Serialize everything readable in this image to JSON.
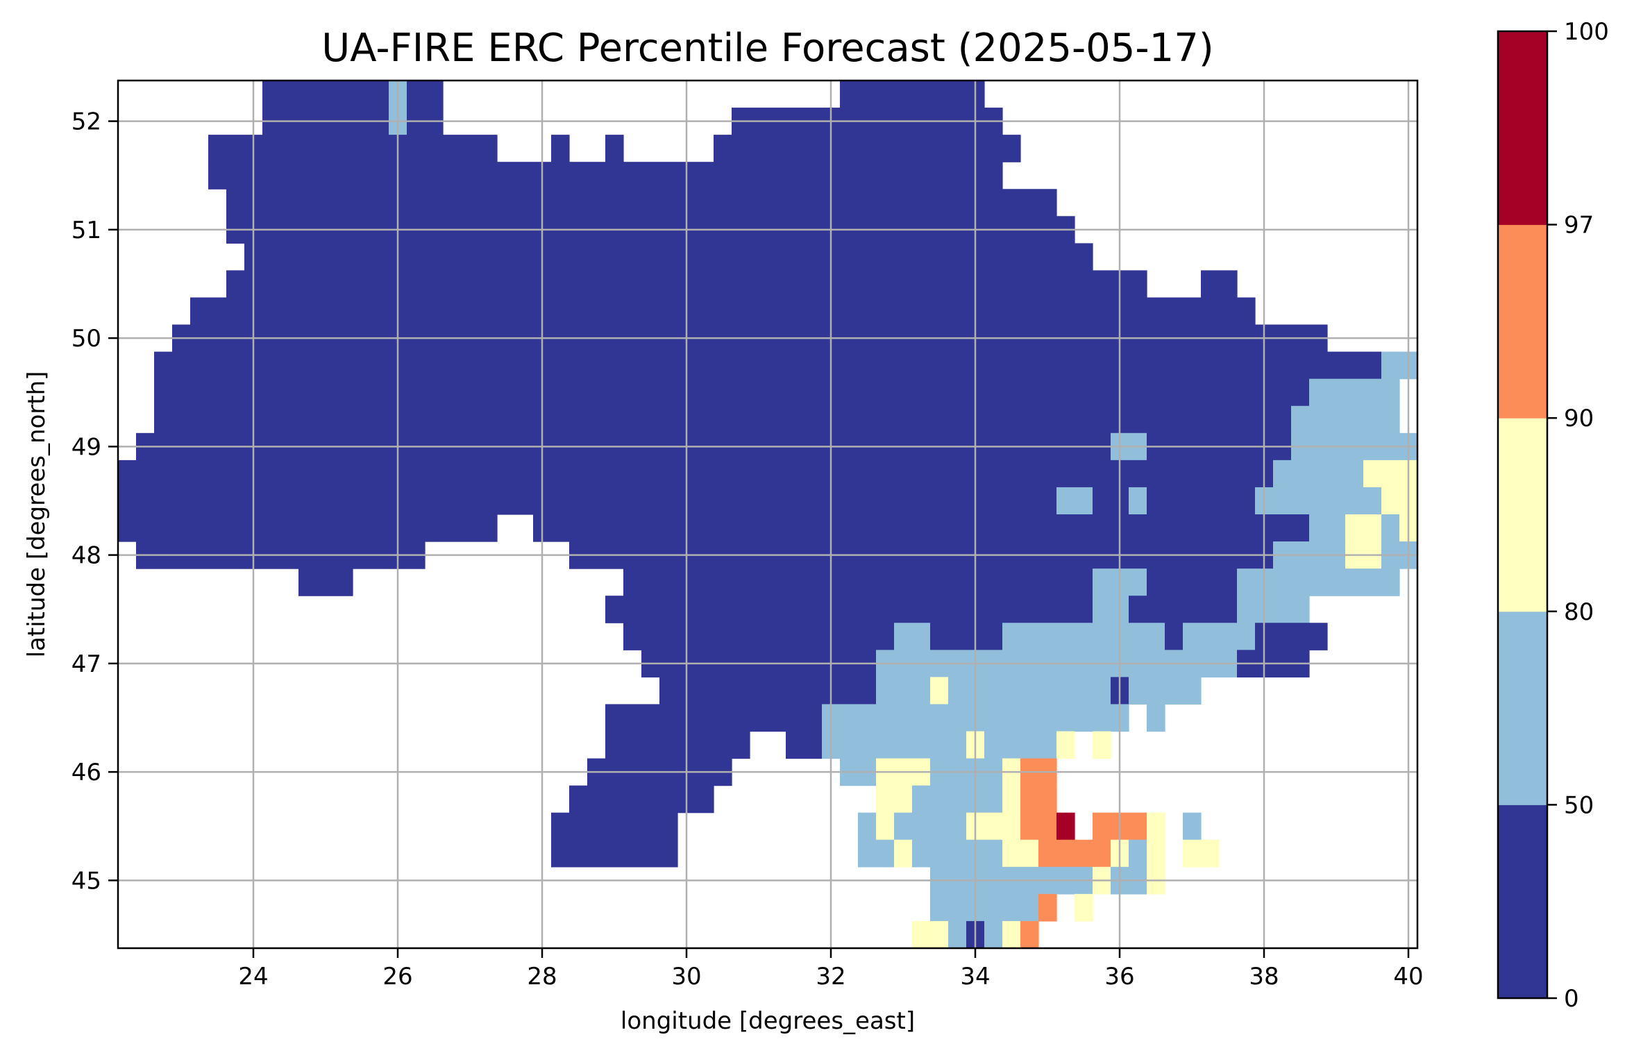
{
  "chart_data": {
    "type": "heatmap",
    "title": "UA-FIRE ERC Percentile Forecast (2025-05-17)",
    "xlabel": "longitude [degrees_east]",
    "ylabel": "latitude [degrees_north]",
    "xlim": [
      22.125,
      40.125
    ],
    "ylim": [
      44.375,
      52.375
    ],
    "cell_size_deg": 0.25,
    "grid": true,
    "x_ticks": [
      24,
      26,
      28,
      30,
      32,
      34,
      36,
      38,
      40
    ],
    "y_ticks": [
      45,
      46,
      47,
      48,
      49,
      50,
      51,
      52
    ],
    "colorbar": {
      "location": "right",
      "bounds": [
        0,
        50,
        80,
        90,
        97,
        100
      ],
      "tick_labels": [
        "0",
        "50",
        "80",
        "90",
        "97",
        "100"
      ],
      "colors": [
        "#313695",
        "#91bfdb",
        "#ffffbf",
        "#fc8d59",
        "#a50026"
      ],
      "colormap": "RdYlBu_r"
    },
    "grid_legend": {
      ".": "no data",
      "0": "0-50",
      "1": "50-80",
      "2": "80-90",
      "3": "90-97",
      "4": "97-100"
    },
    "grid_rows_north_to_south": [
      "........0000000100......................00000000........................",
      "........0000000100................000000000000000.......................",
      ".....0000000000000000...0..0.....00000000000000000......................",
      ".....00000000000000000000000000000000000000000000.......................",
      "......0000000000000000000000000000000000000000000000....................",
      "......00000000000000000000000000000000000000000000000...................",
      ".......00000000000000000000000000000000000000000000000..................",
      "......000000000000000000000000000000000000000000000000000...00..........",
      "....00000000000000000000000000000000000000000000000000000000000.........",
      "...0000000000000000000000000000000000000000000000000000000000000000.....",
      "..0000000000000000000000000000000000000000000000000000000000000000000011..",
      "..000000000000000000000000000000000000000000000000000000000000000011111",
      "..000000000000000000000000000000000000000000000000000000000000000111111",
      ".000000000000000000000000000000000000000000000000000000110000000011111111",
      "0000000000000000000000000000000000000000000000000000000000000000111112222",
      "0000000000000000000000000000000000000000000000000000110010000001111111222",
      "000000000000000000000..00000000000000000000000000000000000000000001122122",
      ".0000000000000000........00000000000000000000000000000000000000011112211111.",
      "..........000...............0000000000000000000000000011100000111111111.",
      "...........................000000000000000000000000000110000001111......",
      "............................000000000000000110000111111111011110000.......",
      ".............................0000000000000111111111111111111110000.......",
      "..............................000000000000111211111111101111............",
      "...........................00000000000011111111111111111.1...............",
      "...........................00000000..0011111111211112 2..................",
      "..........................00000000......112221111233....................",
      ".........................00000000.........2211111233....................",
      "........................0000000..........121111222334.3332 1.............",
      "........................0000000..........11211111223333212 22............",
      ".............................................1111111112112..............",
      ".............................................1111113 2..................",
      "............................................2210123....................."
    ]
  }
}
